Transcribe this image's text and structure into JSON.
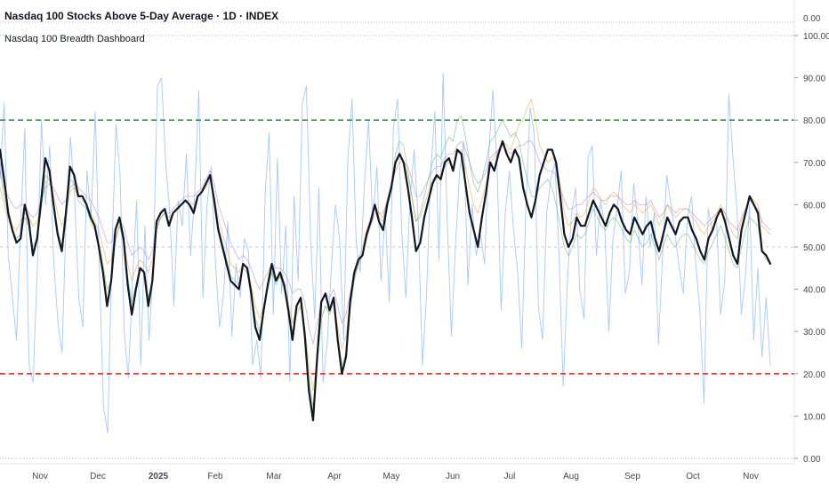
{
  "header": {
    "title": "Nasdaq 100 Stocks Above 5-Day Average · 1D · INDEX",
    "indicator": "Nasdaq 100 Breadth Dashboard"
  },
  "colors": {
    "background": "#ffffff",
    "main_line": "#131722",
    "ma5_line": "#5b9bff",
    "ma20_line": "#e0a030",
    "ma50_line": "#b27acb",
    "ma200_line": "#5aae6b",
    "upper_threshold": "#1e9e3a",
    "lower_threshold": "#e53935",
    "midline": "#c9c9c9",
    "axis_text": "#434651",
    "grid": "#e0e3eb"
  },
  "chart_data": {
    "type": "line",
    "title": "Nasdaq 100 Stocks Above 5-Day Average",
    "ylim": [
      0,
      100
    ],
    "y_ticks": [
      "0.00",
      "10.00",
      "20.00",
      "30.00",
      "40.00",
      "50.00",
      "60.00",
      "70.00",
      "80.00",
      "90.00",
      "100.00"
    ],
    "y_top_label": "0.00",
    "x_ticks": [
      "Nov",
      "Dec",
      "2025",
      "Feb",
      "Mar",
      "Apr",
      "May",
      "Jun",
      "Jul",
      "Aug",
      "Sep",
      "Oct",
      "Nov"
    ],
    "reference_lines": [
      {
        "value": 80,
        "style": "dashed",
        "color": "#1e9e3a"
      },
      {
        "value": 50,
        "style": "dashed",
        "color": "#c9c9c9"
      },
      {
        "value": 20,
        "style": "dashed",
        "color": "#e53935"
      }
    ],
    "grid": false,
    "series": [
      {
        "role": "main",
        "values": [
          73,
          66,
          58,
          54,
          51,
          52,
          60,
          56,
          48,
          52,
          61,
          71,
          68,
          60,
          53,
          49,
          58,
          69,
          67,
          62,
          62,
          60,
          57,
          55,
          50,
          44,
          36,
          42,
          54,
          57,
          52,
          41,
          34,
          40,
          45,
          44,
          36,
          42,
          56,
          58,
          59,
          55,
          58,
          59,
          60,
          61,
          60,
          58,
          62,
          63,
          65,
          67,
          61,
          54,
          50,
          46,
          42,
          41,
          40,
          46,
          45,
          39,
          31,
          28,
          35,
          41,
          46,
          42,
          44,
          41,
          35,
          28,
          36,
          38,
          29,
          16,
          9,
          24,
          37,
          39,
          35,
          38,
          28,
          20,
          24,
          37,
          44,
          47,
          48,
          53,
          56,
          60,
          56,
          54,
          60,
          64,
          70,
          72,
          70,
          64,
          57,
          49,
          51,
          57,
          61,
          65,
          67,
          66,
          70,
          71,
          68,
          73,
          72,
          65,
          58,
          54,
          50,
          57,
          63,
          70,
          68,
          72,
          75,
          72,
          70,
          73,
          71,
          64,
          60,
          57,
          61,
          67,
          70,
          73,
          73,
          70,
          62,
          53,
          50,
          52,
          57,
          55,
          55,
          58,
          61,
          59,
          57,
          55,
          58,
          60,
          59,
          56,
          54,
          53,
          57,
          55,
          53,
          55,
          56,
          52,
          49,
          53,
          57,
          55,
          53,
          56,
          57,
          57,
          54,
          52,
          49,
          47,
          52,
          54,
          57,
          59,
          56,
          52,
          48,
          46,
          54,
          58,
          62,
          60,
          58,
          49,
          48,
          46
        ]
      },
      {
        "role": "ma5",
        "values": [
          66,
          84,
          48,
          38,
          28,
          56,
          78,
          22,
          18,
          45,
          80,
          60,
          74,
          46,
          32,
          25,
          58,
          76,
          62,
          38,
          31,
          68,
          57,
          82,
          45,
          12,
          6,
          48,
          79,
          67,
          30,
          19,
          42,
          61,
          22,
          55,
          28,
          45,
          88,
          90,
          70,
          58,
          36,
          61,
          55,
          72,
          48,
          62,
          87,
          38,
          60,
          69,
          47,
          31,
          39,
          56,
          29,
          46,
          38,
          52,
          49,
          22,
          28,
          19,
          62,
          77,
          34,
          71,
          39,
          55,
          18,
          62,
          42,
          84,
          88,
          52,
          33,
          64,
          18,
          27,
          45,
          60,
          52,
          28,
          71,
          85,
          51,
          44,
          65,
          80,
          56,
          69,
          42,
          58,
          37,
          78,
          85,
          54,
          38,
          61,
          73,
          56,
          22,
          39,
          68,
          82,
          47,
          91,
          56,
          29,
          51,
          68,
          75,
          41,
          60,
          48,
          53,
          46,
          72,
          87,
          70,
          35,
          58,
          68,
          54,
          44,
          26,
          60,
          83,
          77,
          36,
          28,
          58,
          66,
          70,
          48,
          17,
          42,
          58,
          64,
          40,
          33,
          71,
          74,
          48,
          61,
          55,
          30,
          52,
          59,
          68,
          39,
          44,
          65,
          56,
          41,
          62,
          50,
          58,
          27,
          48,
          67,
          60,
          53,
          45,
          39,
          57,
          62,
          46,
          35,
          13,
          59,
          54,
          57,
          34,
          42,
          86,
          71,
          58,
          34,
          43,
          60,
          28,
          45,
          24,
          38,
          22
        ]
      },
      {
        "role": "ma20",
        "values": [
          64,
          60,
          56,
          55,
          54,
          56,
          58,
          57,
          55,
          56,
          60,
          65,
          66,
          62,
          58,
          55,
          58,
          63,
          64,
          62,
          61,
          60,
          58,
          56,
          54,
          50,
          46,
          47,
          52,
          55,
          52,
          46,
          42,
          45,
          47,
          46,
          44,
          47,
          54,
          57,
          58,
          57,
          58,
          59,
          60,
          61,
          61,
          60,
          62,
          63,
          64,
          66,
          62,
          57,
          53,
          50,
          46,
          45,
          44,
          46,
          45,
          41,
          36,
          33,
          36,
          41,
          44,
          42,
          43,
          41,
          37,
          32,
          35,
          36,
          31,
          22,
          16,
          24,
          33,
          36,
          35,
          37,
          31,
          26,
          29,
          37,
          43,
          47,
          50,
          54,
          57,
          60,
          58,
          57,
          61,
          65,
          70,
          71,
          70,
          67,
          62,
          56,
          57,
          60,
          63,
          66,
          67,
          67,
          69,
          70,
          69,
          72,
          73,
          69,
          64,
          60,
          58,
          61,
          65,
          70,
          71,
          73,
          75,
          74,
          73,
          76,
          79,
          80,
          83,
          85,
          80,
          74,
          72,
          70,
          71,
          70,
          65,
          58,
          55,
          56,
          58,
          57,
          58,
          61,
          64,
          63,
          61,
          60,
          62,
          63,
          62,
          60,
          59,
          58,
          60,
          59,
          58,
          59,
          60,
          58,
          55,
          57,
          60,
          58,
          57,
          58,
          59,
          59,
          57,
          56,
          54,
          53,
          55,
          56,
          58,
          60,
          58,
          55,
          53,
          52,
          56,
          59,
          62,
          61,
          60,
          55,
          54,
          53
        ]
      },
      {
        "role": "ma50",
        "values": [
          70,
          64,
          62,
          60,
          59,
          60,
          60,
          58,
          57,
          58,
          61,
          64,
          65,
          64,
          62,
          60,
          61,
          64,
          65,
          64,
          63,
          62,
          61,
          59,
          57,
          54,
          51,
          51,
          54,
          56,
          55,
          51,
          48,
          49,
          50,
          49,
          47,
          49,
          55,
          57,
          58,
          58,
          59,
          60,
          61,
          62,
          62,
          62,
          63,
          64,
          66,
          68,
          65,
          60,
          57,
          54,
          51,
          49,
          47,
          48,
          47,
          45,
          42,
          40,
          42,
          44,
          46,
          45,
          45,
          44,
          42,
          39,
          40,
          40,
          37,
          31,
          27,
          32,
          37,
          39,
          38,
          40,
          36,
          32,
          34,
          39,
          43,
          46,
          48,
          52,
          55,
          58,
          58,
          58,
          61,
          64,
          68,
          70,
          70,
          69,
          66,
          62,
          62,
          64,
          66,
          68,
          69,
          69,
          71,
          72,
          72,
          74,
          75,
          73,
          70,
          67,
          65,
          66,
          68,
          71,
          72,
          73,
          74,
          73,
          72,
          73,
          74,
          74,
          75,
          75,
          73,
          70,
          69,
          68,
          68,
          67,
          64,
          61,
          59,
          59,
          60,
          60,
          61,
          62,
          63,
          62,
          61,
          61,
          62,
          62,
          62,
          61,
          60,
          60,
          61,
          60,
          60,
          60,
          61,
          59,
          57,
          58,
          60,
          59,
          58,
          59,
          59,
          59,
          58,
          57,
          56,
          55,
          56,
          57,
          58,
          59,
          58,
          56,
          55,
          54,
          57,
          59,
          61,
          60,
          59,
          56,
          55,
          54
        ]
      },
      {
        "role": "ma200",
        "values": [
          68,
          62,
          57,
          54,
          52,
          53,
          57,
          55,
          50,
          52,
          59,
          67,
          66,
          60,
          54,
          50,
          56,
          66,
          65,
          61,
          60,
          59,
          56,
          54,
          51,
          46,
          40,
          42,
          51,
          55,
          51,
          43,
          37,
          41,
          45,
          44,
          38,
          42,
          54,
          57,
          58,
          56,
          58,
          59,
          60,
          61,
          60,
          59,
          62,
          63,
          65,
          67,
          62,
          55,
          51,
          47,
          43,
          42,
          41,
          45,
          44,
          39,
          33,
          30,
          35,
          40,
          44,
          41,
          43,
          40,
          35,
          30,
          34,
          36,
          30,
          19,
          12,
          22,
          33,
          36,
          34,
          37,
          29,
          22,
          25,
          35,
          42,
          46,
          48,
          53,
          56,
          60,
          57,
          56,
          61,
          65,
          72,
          75,
          74,
          68,
          62,
          56,
          58,
          62,
          66,
          70,
          72,
          71,
          74,
          76,
          75,
          80,
          81,
          76,
          70,
          65,
          63,
          66,
          70,
          75,
          76,
          78,
          80,
          78,
          76,
          77,
          75,
          70,
          66,
          62,
          62,
          64,
          65,
          66,
          64,
          60,
          55,
          50,
          48,
          50,
          53,
          52,
          53,
          56,
          59,
          57,
          55,
          54,
          56,
          57,
          56,
          54,
          52,
          51,
          54,
          52,
          50,
          51,
          53,
          50,
          47,
          50,
          53,
          51,
          50,
          52,
          53,
          53,
          51,
          49,
          47,
          46,
          49,
          51,
          53,
          55,
          52,
          49,
          46,
          45,
          50,
          54,
          57,
          56,
          55,
          49,
          47,
          46
        ]
      }
    ]
  }
}
